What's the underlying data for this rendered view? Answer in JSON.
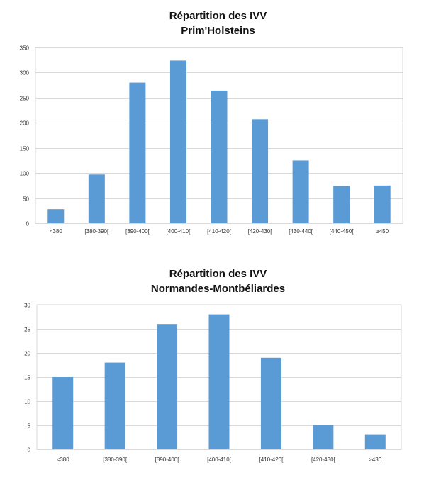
{
  "chart_data": [
    {
      "type": "bar",
      "title": "Répartition des IVV",
      "subtitle": "Prim'Holsteins",
      "categories": [
        "<380",
        "[380-390[",
        "[390-400[",
        "[400-410[",
        "[410-420[",
        "[420-430[",
        "[430-440[",
        "[440-450[",
        "≥450"
      ],
      "values": [
        28,
        97,
        280,
        324,
        264,
        207,
        125,
        74,
        75
      ],
      "ylim": [
        0,
        350
      ],
      "yticks": [
        0,
        50,
        100,
        150,
        200,
        250,
        300,
        350
      ],
      "xlabel": "",
      "ylabel": "",
      "grid": true,
      "color": "#5b9bd5"
    },
    {
      "type": "bar",
      "title": "Répartition des IVV",
      "subtitle": "Normandes-Montbéliardes",
      "categories": [
        "<380",
        "[380-390[",
        "[390-400[",
        "[400-410[",
        "[410-420[",
        "[420-430[",
        "≥430"
      ],
      "values": [
        15,
        18,
        26,
        28,
        19,
        5,
        3
      ],
      "ylim": [
        0,
        30
      ],
      "yticks": [
        0,
        5,
        10,
        15,
        20,
        25,
        30
      ],
      "xlabel": "",
      "ylabel": "",
      "grid": true,
      "color": "#5b9bd5"
    }
  ]
}
